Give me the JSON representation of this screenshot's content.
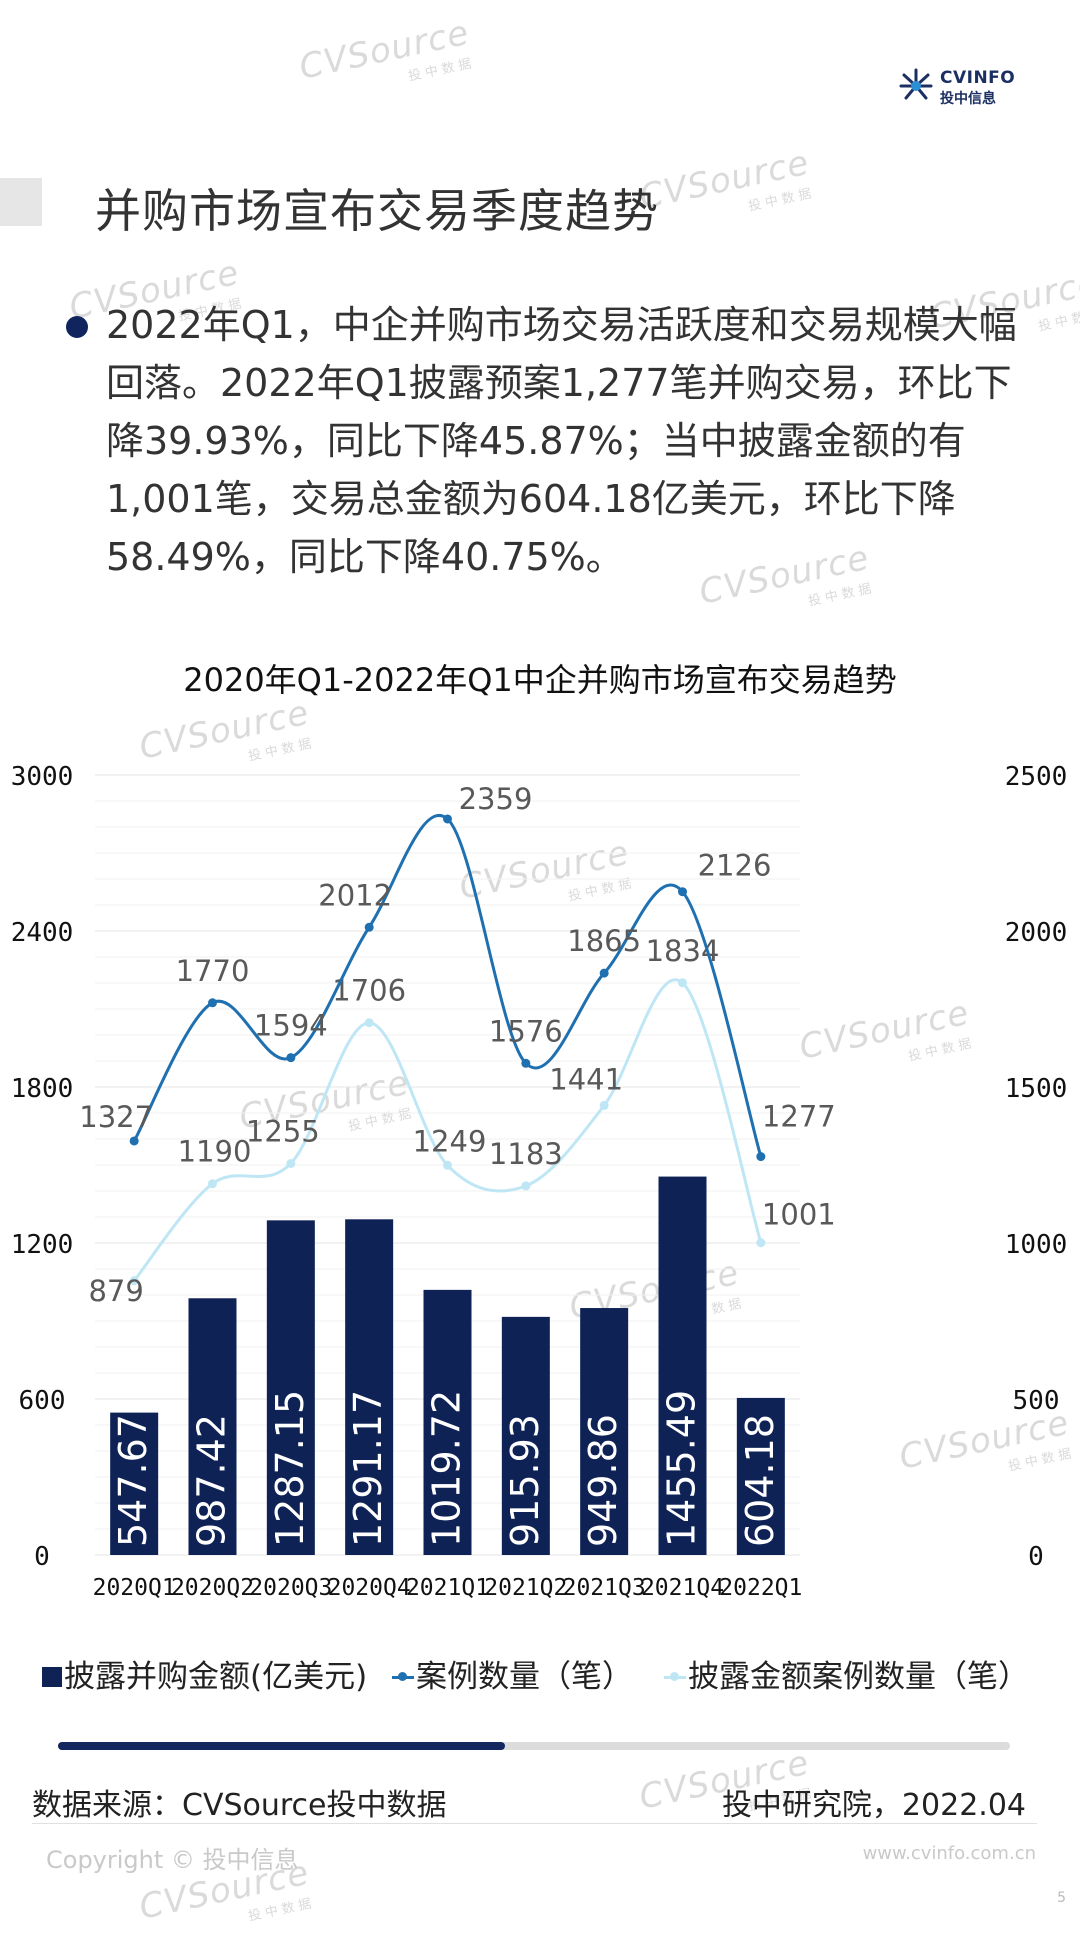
{
  "brand": {
    "logo_top": "CVINFO",
    "logo_bottom": "投中信息",
    "accent_color": "#0f2256",
    "line_dark": "#1f70b0",
    "line_light": "#bfe6f5"
  },
  "header": {
    "title": "并购市场宣布交易季度趋势"
  },
  "summary": {
    "text": "2022年Q1，中企并购市场交易活跃度和交易规模大幅回落。2022年Q1披露预案1,277笔并购交易，环比下降39.93%，同比下降45.87%；当中披露金额的有1,001笔，交易总金额为604.18亿美元，环比下降58.49%，同比下降40.75%。"
  },
  "chart_data": {
    "type": "bar",
    "title": "2020年Q1-2022年Q1中企并购市场宣布交易趋势",
    "categories": [
      "2020Q1",
      "2020Q2",
      "2020Q3",
      "2020Q4",
      "2021Q1",
      "2021Q2",
      "2021Q3",
      "2021Q4",
      "2022Q1"
    ],
    "left_axis": {
      "ticks": [
        "0",
        "600",
        "1200",
        "1800",
        "2400",
        "3000"
      ],
      "ylim": [
        0,
        3000
      ]
    },
    "right_axis": {
      "ticks": [
        "0",
        "500",
        "1000",
        "1500",
        "2000",
        "2500"
      ],
      "ylim": [
        0,
        2500
      ]
    },
    "grid": true,
    "legend_position": "bottom",
    "series": [
      {
        "name": "披露并购金额(亿美元)",
        "type": "bar",
        "axis": "left",
        "color": "#0f2256",
        "values": [
          547.67,
          987.42,
          1287.15,
          1291.17,
          1019.72,
          915.93,
          949.86,
          1455.49,
          604.18
        ],
        "labels": [
          "547.67",
          "987.42",
          "1287.15",
          "1291.17",
          "1019.72",
          "915.93",
          "949.86",
          "1455.49",
          "604.18"
        ]
      },
      {
        "name": "案例数量（笔）",
        "type": "line",
        "axis": "right",
        "color": "#1f70b0",
        "values": [
          1327,
          1770,
          1594,
          2012,
          2359,
          1576,
          1865,
          2126,
          1277
        ],
        "labels": [
          "1327",
          "1770",
          "1594",
          "2012",
          "2359",
          "1576",
          "1865",
          "2126",
          "1277"
        ]
      },
      {
        "name": "披露金额案例数量（笔）",
        "type": "line",
        "axis": "right",
        "color": "#bfe6f5",
        "values": [
          879,
          1190,
          1255,
          1706,
          1249,
          1183,
          1441,
          1834,
          1001
        ],
        "labels": [
          "879",
          "1190",
          "1255",
          "1706",
          "1249",
          "1183",
          "1441",
          "1834",
          "1001"
        ]
      }
    ]
  },
  "legend": {
    "bar": "披露并购金额(亿美元)",
    "line1": "案例数量（笔）",
    "line2": "披露金额案例数量（笔）"
  },
  "progress": {
    "fraction": 0.47
  },
  "footer": {
    "source": "数据来源：CVSource投中数据",
    "org_date": "投中研究院，2022.04",
    "copyright": "Copyright © 投中信息",
    "url": "www.cvinfo.com.cn",
    "page": "5"
  },
  "watermark": {
    "text": "CVSource",
    "sub": "投中数据"
  }
}
